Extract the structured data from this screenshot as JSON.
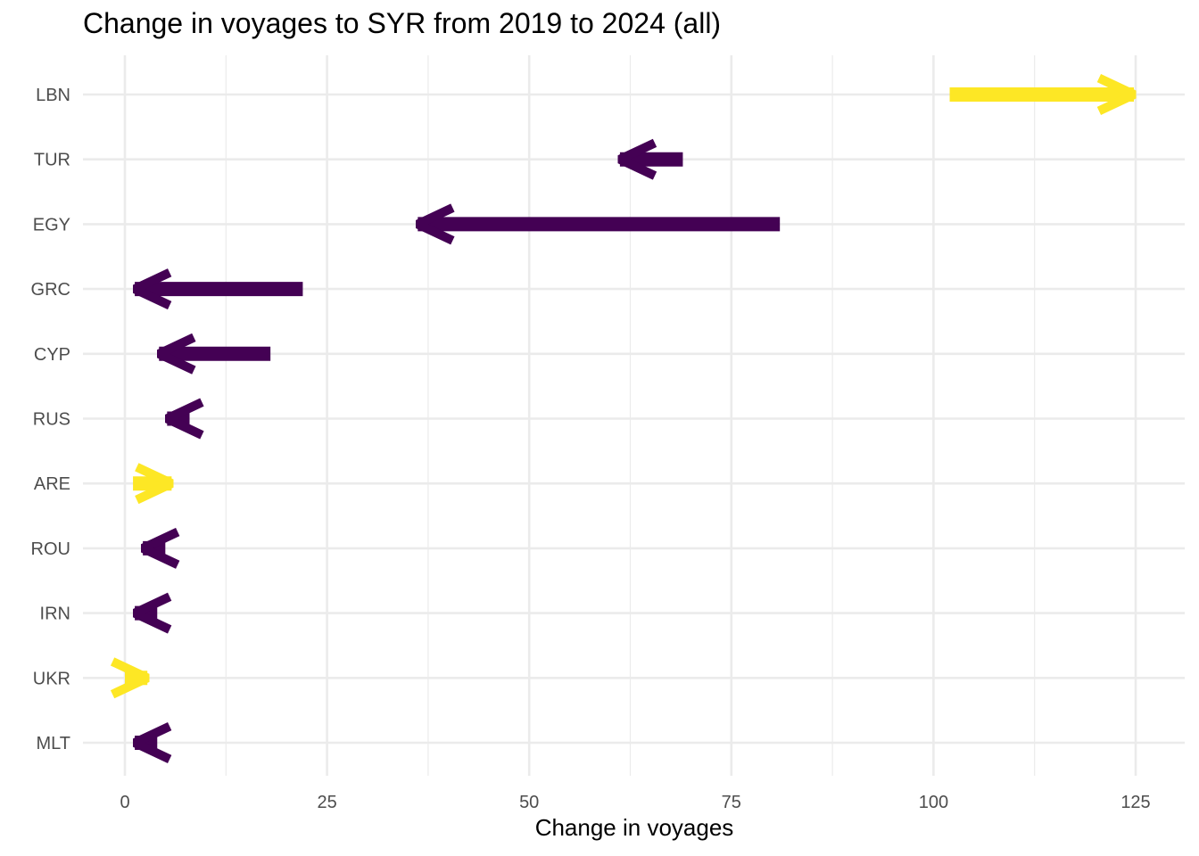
{
  "chart_data": {
    "type": "arrow",
    "title": "Change in voyages to SYR from 2019 to 2024 (all)",
    "xlabel": "Change in voyages",
    "ylabel": "",
    "xlim": [
      -5,
      130
    ],
    "x_ticks": [
      0,
      25,
      50,
      75,
      100,
      125
    ],
    "grid": true,
    "legend": "none",
    "categories": [
      "LBN",
      "TUR",
      "EGY",
      "GRC",
      "CYP",
      "RUS",
      "ARE",
      "ROU",
      "IRN",
      "UKR",
      "MLT"
    ],
    "arrows": [
      {
        "category": "LBN",
        "start": 102,
        "end": 125,
        "direction": "increase"
      },
      {
        "category": "TUR",
        "start": 69,
        "end": 61,
        "direction": "decrease"
      },
      {
        "category": "EGY",
        "start": 81,
        "end": 36,
        "direction": "decrease"
      },
      {
        "category": "GRC",
        "start": 22,
        "end": 1,
        "direction": "decrease"
      },
      {
        "category": "CYP",
        "start": 18,
        "end": 4,
        "direction": "decrease"
      },
      {
        "category": "RUS",
        "start": 8,
        "end": 5,
        "direction": "decrease"
      },
      {
        "category": "ARE",
        "start": 1,
        "end": 6,
        "direction": "increase"
      },
      {
        "category": "ROU",
        "start": 5,
        "end": 2,
        "direction": "decrease"
      },
      {
        "category": "IRN",
        "start": 4,
        "end": 1,
        "direction": "decrease"
      },
      {
        "category": "UKR",
        "start": 0,
        "end": 3,
        "direction": "increase"
      },
      {
        "category": "MLT",
        "start": 4,
        "end": 1,
        "direction": "decrease"
      }
    ],
    "colors": {
      "increase": "#FDE725",
      "decrease": "#440154"
    }
  }
}
